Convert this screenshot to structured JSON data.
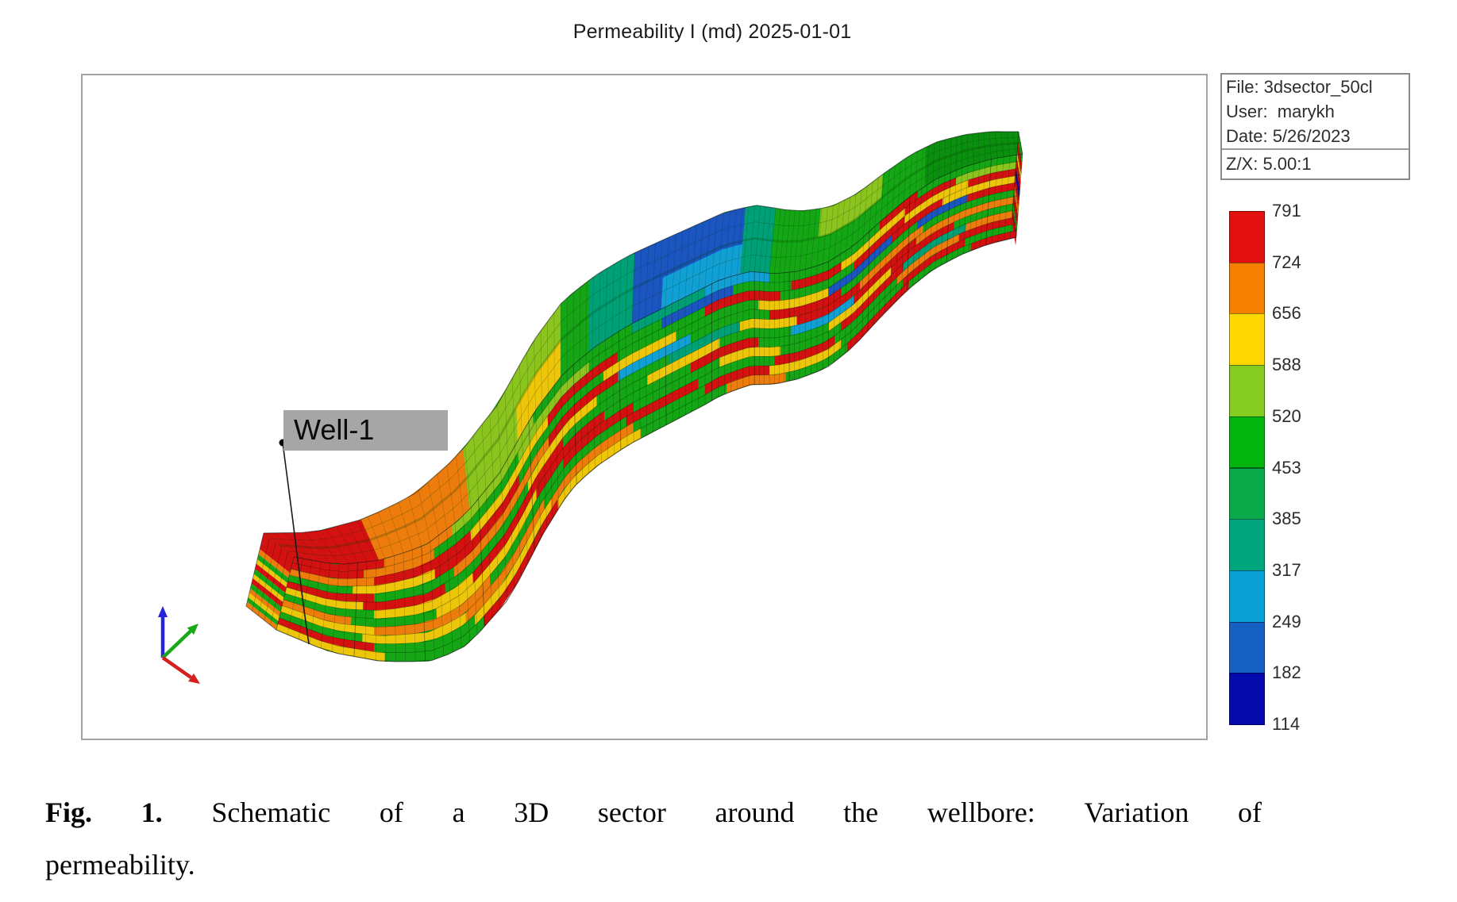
{
  "title": "Permeability I (md) 2025-01-01",
  "info_box": {
    "file": "File: 3dsector_50cl",
    "user": "User:  marykh",
    "date": "Date: 5/26/2023",
    "zx": "Z/X: 5.00:1"
  },
  "well_label": "Well-1",
  "caption": {
    "line1": "Fig. 1. Schematic of a 3D sector around the wellbore: Variation of",
    "line2": "permeability.",
    "bold_words": 2
  },
  "chart_data": {
    "type": "heatmap",
    "title": "Permeability I (md) 2025-01-01",
    "property": "Permeability I",
    "units": "md",
    "date": "2025-01-01",
    "legend_values": [
      791,
      724,
      656,
      588,
      520,
      453,
      385,
      317,
      249,
      182,
      114
    ],
    "legend_colors": [
      "#e31010",
      "#f57f00",
      "#fed800",
      "#86cb1f",
      "#02b50f",
      "#0aa94a",
      "#00a67e",
      "#09a0d6",
      "#1560c2",
      "#0409ab"
    ],
    "annotations": [
      "Well-1"
    ],
    "info": {
      "file": "3dsector_50cl",
      "user": "marykh",
      "date": "5/26/2023",
      "z_x_ratio": "5.00:1"
    }
  },
  "axes_icon": {
    "x_color": "#d42020",
    "y_color": "#18a818",
    "z_color": "#2424d8"
  },
  "model": {
    "palette": {
      "R": "#d31111",
      "O": "#ec7d0c",
      "Y": "#edc60a",
      "LG": "#8bc41e",
      "G": "#14a614",
      "DG": "#0b8f0e",
      "T": "#00a076",
      "C": "#11a0d4",
      "B": "#1a55c0",
      "DB": "#0e0eaa"
    },
    "top_base": "#0f9912",
    "top_patches": [
      [
        0,
        0.085,
        "R",
        0,
        1
      ],
      [
        0.085,
        0.18,
        "O",
        0,
        1
      ],
      [
        0.18,
        0.3,
        "LG",
        0,
        1
      ],
      [
        0.24,
        0.32,
        "Y",
        0,
        0.5
      ],
      [
        0.3,
        0.38,
        "G",
        0,
        1
      ],
      [
        0.34,
        0.4,
        "T",
        0,
        1
      ],
      [
        0.4,
        0.55,
        "B",
        0,
        1
      ],
      [
        0.44,
        0.58,
        "C",
        0,
        0.45
      ],
      [
        0.55,
        0.6,
        "T",
        0,
        1
      ],
      [
        0.6,
        1,
        "G",
        0,
        1
      ],
      [
        0.68,
        0.78,
        "LG",
        0.5,
        1
      ],
      [
        0.85,
        1,
        "DG",
        0,
        1
      ]
    ],
    "side_layers": [
      [
        [
          0,
          0.09,
          "R"
        ],
        [
          0.09,
          0.16,
          "O"
        ],
        [
          0.16,
          0.26,
          "LG"
        ],
        [
          0.26,
          0.4,
          "G"
        ],
        [
          0.4,
          0.5,
          "T"
        ],
        [
          0.5,
          0.6,
          "C"
        ],
        [
          0.6,
          0.78,
          "G"
        ],
        [
          0.78,
          0.84,
          "R"
        ],
        [
          0.84,
          1,
          "G"
        ]
      ],
      [
        [
          0,
          0.07,
          "R"
        ],
        [
          0.07,
          0.14,
          "O"
        ],
        [
          0.14,
          0.24,
          "G"
        ],
        [
          0.24,
          0.34,
          "LG"
        ],
        [
          0.34,
          0.44,
          "G"
        ],
        [
          0.44,
          0.54,
          "B"
        ],
        [
          0.54,
          0.64,
          "G"
        ],
        [
          0.64,
          0.72,
          "R"
        ],
        [
          0.72,
          0.82,
          "Y"
        ],
        [
          0.82,
          0.9,
          "R"
        ],
        [
          0.9,
          1,
          "LG"
        ]
      ],
      [
        [
          0,
          0.08,
          "O"
        ],
        [
          0.08,
          0.18,
          "R"
        ],
        [
          0.18,
          0.28,
          "Y"
        ],
        [
          0.28,
          0.38,
          "R"
        ],
        [
          0.38,
          0.5,
          "G"
        ],
        [
          0.5,
          0.62,
          "R"
        ],
        [
          0.62,
          0.74,
          "G"
        ],
        [
          0.74,
          0.82,
          "R"
        ],
        [
          0.82,
          0.92,
          "Y"
        ],
        [
          0.92,
          1,
          "R"
        ]
      ],
      [
        [
          0,
          0.06,
          "G"
        ],
        [
          0.06,
          0.14,
          "Y"
        ],
        [
          0.14,
          0.24,
          "R"
        ],
        [
          0.24,
          0.36,
          "G"
        ],
        [
          0.36,
          0.46,
          "Y"
        ],
        [
          0.46,
          0.58,
          "G"
        ],
        [
          0.58,
          0.7,
          "Y"
        ],
        [
          0.7,
          0.8,
          "B"
        ],
        [
          0.8,
          0.88,
          "R"
        ],
        [
          0.88,
          1,
          "Y"
        ]
      ],
      [
        [
          0,
          0.08,
          "R"
        ],
        [
          0.08,
          0.16,
          "G"
        ],
        [
          0.16,
          0.28,
          "O"
        ],
        [
          0.28,
          0.38,
          "R"
        ],
        [
          0.38,
          0.48,
          "C"
        ],
        [
          0.48,
          0.6,
          "G"
        ],
        [
          0.6,
          0.72,
          "R"
        ],
        [
          0.72,
          0.84,
          "G"
        ],
        [
          0.84,
          0.92,
          "B"
        ],
        [
          0.92,
          1,
          "R"
        ]
      ],
      [
        [
          0,
          0.07,
          "Y"
        ],
        [
          0.07,
          0.15,
          "R"
        ],
        [
          0.15,
          0.25,
          "G"
        ],
        [
          0.25,
          0.35,
          "Y"
        ],
        [
          0.35,
          0.45,
          "G"
        ],
        [
          0.45,
          0.55,
          "T"
        ],
        [
          0.55,
          0.65,
          "Y"
        ],
        [
          0.65,
          0.75,
          "R"
        ],
        [
          0.75,
          0.85,
          "O"
        ],
        [
          0.85,
          1,
          "G"
        ]
      ],
      [
        [
          0,
          0.08,
          "G"
        ],
        [
          0.08,
          0.18,
          "Y"
        ],
        [
          0.18,
          0.3,
          "R"
        ],
        [
          0.3,
          0.42,
          "G"
        ],
        [
          0.42,
          0.52,
          "Y"
        ],
        [
          0.52,
          0.64,
          "G"
        ],
        [
          0.64,
          0.74,
          "C"
        ],
        [
          0.74,
          0.84,
          "R"
        ],
        [
          0.84,
          1,
          "O"
        ]
      ],
      [
        [
          0,
          0.06,
          "O"
        ],
        [
          0.06,
          0.14,
          "G"
        ],
        [
          0.14,
          0.26,
          "Y"
        ],
        [
          0.26,
          0.36,
          "R"
        ],
        [
          0.36,
          0.48,
          "G"
        ],
        [
          0.48,
          0.58,
          "R"
        ],
        [
          0.58,
          0.7,
          "G"
        ],
        [
          0.7,
          0.8,
          "Y"
        ],
        [
          0.8,
          0.9,
          "R"
        ],
        [
          0.9,
          1,
          "G"
        ]
      ],
      [
        [
          0,
          0.08,
          "Y"
        ],
        [
          0.08,
          0.2,
          "O"
        ],
        [
          0.2,
          0.3,
          "G"
        ],
        [
          0.3,
          0.4,
          "R"
        ],
        [
          0.4,
          0.52,
          "G"
        ],
        [
          0.52,
          0.62,
          "Y"
        ],
        [
          0.62,
          0.72,
          "G"
        ],
        [
          0.72,
          0.82,
          "R"
        ],
        [
          0.82,
          0.92,
          "T"
        ],
        [
          0.92,
          1,
          "O"
        ]
      ],
      [
        [
          0,
          0.07,
          "G"
        ],
        [
          0.07,
          0.17,
          "Y"
        ],
        [
          0.17,
          0.27,
          "O"
        ],
        [
          0.27,
          0.39,
          "G"
        ],
        [
          0.39,
          0.49,
          "R"
        ],
        [
          0.49,
          0.61,
          "G"
        ],
        [
          0.61,
          0.71,
          "R"
        ],
        [
          0.71,
          0.81,
          "G"
        ],
        [
          0.81,
          0.91,
          "O"
        ],
        [
          0.91,
          1,
          "R"
        ]
      ],
      [
        [
          0,
          0.08,
          "R"
        ],
        [
          0.08,
          0.18,
          "G"
        ],
        [
          0.18,
          0.28,
          "Y"
        ],
        [
          0.28,
          0.4,
          "O"
        ],
        [
          0.4,
          0.5,
          "G"
        ],
        [
          0.5,
          0.6,
          "R"
        ],
        [
          0.6,
          0.72,
          "Y"
        ],
        [
          0.72,
          0.82,
          "G"
        ],
        [
          0.82,
          0.92,
          "R"
        ],
        [
          0.92,
          1,
          "G"
        ]
      ],
      [
        [
          0,
          0.09,
          "Y"
        ],
        [
          0.09,
          0.19,
          "G"
        ],
        [
          0.19,
          0.29,
          "R"
        ],
        [
          0.29,
          0.41,
          "Y"
        ],
        [
          0.41,
          0.53,
          "G"
        ],
        [
          0.53,
          0.63,
          "O"
        ],
        [
          0.63,
          0.73,
          "G"
        ],
        [
          0.73,
          0.83,
          "R"
        ],
        [
          0.83,
          0.93,
          "G"
        ],
        [
          0.93,
          1,
          "R"
        ]
      ]
    ],
    "left_end": [
      [
        "R",
        0.22
      ],
      [
        "O",
        0.07
      ],
      [
        "G",
        0.07
      ],
      [
        "Y",
        0.06
      ],
      [
        "R",
        0.07
      ],
      [
        "G",
        0.07
      ],
      [
        "Y",
        0.06
      ],
      [
        "R",
        0.07
      ],
      [
        "G",
        0.07
      ],
      [
        "O",
        0.06
      ],
      [
        "Y",
        0.06
      ],
      [
        "G",
        0.06
      ],
      [
        "O",
        0.06
      ]
    ],
    "right_end": [
      [
        "G",
        0.12
      ],
      [
        "R",
        0.12
      ],
      [
        "Y",
        0.08
      ],
      [
        "R",
        0.12
      ],
      [
        "DB",
        0.1
      ],
      [
        "R",
        0.1
      ],
      [
        "O",
        0.1
      ],
      [
        "R",
        0.12
      ],
      [
        "G",
        0.08
      ],
      [
        "R",
        0.16
      ]
    ]
  }
}
